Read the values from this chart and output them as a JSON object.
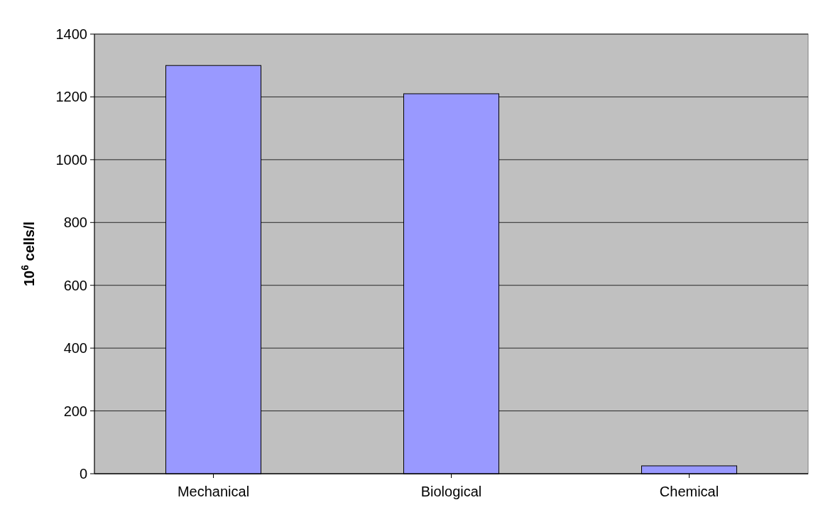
{
  "chart_data": {
    "type": "bar",
    "ylabel": "10$^{6}$ cells/l",
    "categories": [
      "Mechanical",
      "Biological",
      "Chemical"
    ],
    "values": [
      1300,
      1210,
      25
    ],
    "color": "#9999ff",
    "ylim": [
      0,
      1400
    ],
    "yticks": [
      0,
      200,
      400,
      600,
      800,
      1000,
      1200,
      1400
    ],
    "grid": "y"
  }
}
